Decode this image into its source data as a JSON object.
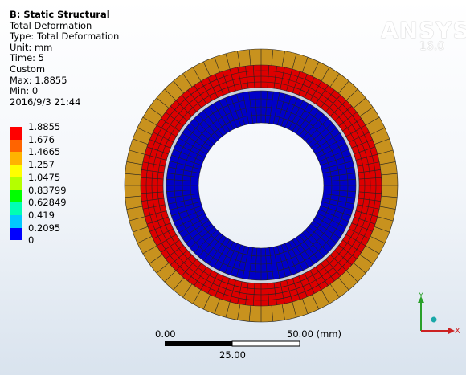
{
  "header": {
    "title": "B: Static Structural",
    "lines": [
      "Total Deformation",
      "Type: Total Deformation",
      "Unit: mm",
      "Time: 5",
      "Custom",
      "Max: 1.8855",
      "Min: 0",
      "2016/9/3 21:44"
    ]
  },
  "legend": {
    "levels": [
      "1.8855",
      "1.676",
      "1.4665",
      "1.257",
      "1.0475",
      "0.83799",
      "0.62849",
      "0.419",
      "0.2095",
      "0"
    ]
  },
  "logo": {
    "name": "ANSYS",
    "version": "16.0"
  },
  "scale_bar": {
    "start": "0.00",
    "end": "50.00 (mm)",
    "middle": "25.00"
  },
  "triad": {
    "y": "Y",
    "x": "X"
  }
}
